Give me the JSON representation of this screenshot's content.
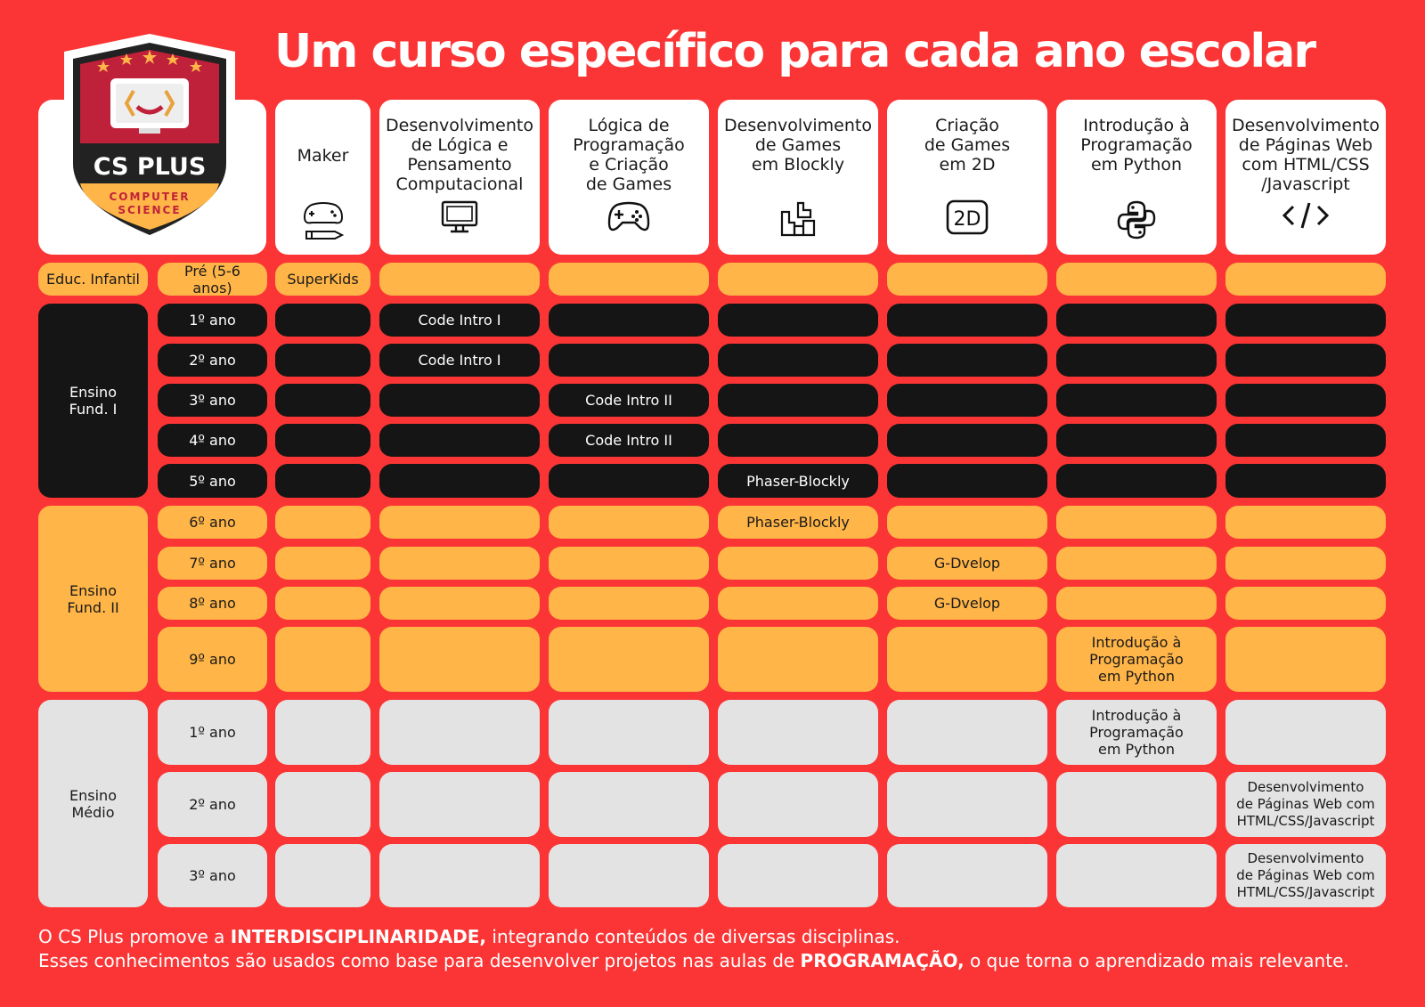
{
  "title": "Um curso específico para cada ano escolar",
  "logo": {
    "name": "CS PLUS",
    "sub1": "COMPUTER",
    "sub2": "SCIENCE"
  },
  "courses": [
    {
      "label": "Maker",
      "icon": "gamepad-pencil-icon"
    },
    {
      "label": "Desenvolvimento\nde Lógica e\nPensamento\nComputacional",
      "icon": "monitor-icon"
    },
    {
      "label": "Lógica de\nProgramação\ne Criação\nde Games",
      "icon": "gamepad-icon"
    },
    {
      "label": "Desenvolvimento\nde Games\nem Blockly",
      "icon": "blocks-icon"
    },
    {
      "label": "Criação\nde Games\nem 2D",
      "icon": "2d-icon"
    },
    {
      "label": "Introdução à\nProgramação\nem Python",
      "icon": "python-icon"
    },
    {
      "label": "Desenvolvimento\nde Páginas Web\ncom HTML/CSS\n/Javascript",
      "icon": "code-icon"
    }
  ],
  "levels": {
    "infantil": "Educ. Infantil",
    "fund1": "Ensino\nFund. I",
    "fund2": "Ensino\nFund. II",
    "medio": "Ensino\nMédio"
  },
  "rows": [
    {
      "grade": "Pré (5-6 anos)",
      "cells": [
        "SuperKids",
        "",
        "",
        "",
        "",
        "",
        ""
      ]
    },
    {
      "grade": "1º ano",
      "cells": [
        "",
        "Code Intro I",
        "",
        "",
        "",
        "",
        ""
      ]
    },
    {
      "grade": "2º ano",
      "cells": [
        "",
        "Code Intro I",
        "",
        "",
        "",
        "",
        ""
      ]
    },
    {
      "grade": "3º ano",
      "cells": [
        "",
        "",
        "Code Intro  II",
        "",
        "",
        "",
        ""
      ]
    },
    {
      "grade": "4º ano",
      "cells": [
        "",
        "",
        "Code Intro  II",
        "",
        "",
        "",
        ""
      ]
    },
    {
      "grade": "5º ano",
      "cells": [
        "",
        "",
        "",
        "Phaser-Blockly",
        "",
        "",
        ""
      ]
    },
    {
      "grade": "6º ano",
      "cells": [
        "",
        "",
        "",
        "Phaser-Blockly",
        "",
        "",
        ""
      ]
    },
    {
      "grade": "7º ano",
      "cells": [
        "",
        "",
        "",
        "",
        "G-Dvelop",
        "",
        ""
      ]
    },
    {
      "grade": "8º ano",
      "cells": [
        "",
        "",
        "",
        "",
        "G-Dvelop",
        "",
        ""
      ]
    },
    {
      "grade": "9º ano",
      "cells": [
        "",
        "",
        "",
        "",
        "",
        "Introdução à\nProgramação\nem Python",
        ""
      ]
    },
    {
      "grade": "1º ano",
      "cells": [
        "",
        "",
        "",
        "",
        "",
        "Introdução à\nProgramação\nem Python",
        ""
      ]
    },
    {
      "grade": "2º ano",
      "cells": [
        "",
        "",
        "",
        "",
        "",
        "",
        "Desenvolvimento\nde Páginas Web com\nHTML/CSS/Javascript"
      ]
    },
    {
      "grade": "3º ano",
      "cells": [
        "",
        "",
        "",
        "",
        "",
        "",
        "Desenvolvimento\nde Páginas Web com\nHTML/CSS/Javascript"
      ]
    }
  ],
  "footer": {
    "line1_pre": "O CS Plus promove a ",
    "line1_bold": "INTERDISCIPLINARIDADE,",
    "line1_post": " integrando conteúdos de diversas disciplinas.",
    "line2_pre": "Esses conhecimentos são usados como base para desenvolver projetos nas aulas de ",
    "line2_bold": "PROGRAMAÇÃO,",
    "line2_post": " o que torna o aprendizado mais relevante."
  },
  "colors": {
    "background": "#fb3535",
    "yellow": "#ffb547",
    "black": "#151515",
    "gray": "#e3e3e3"
  }
}
